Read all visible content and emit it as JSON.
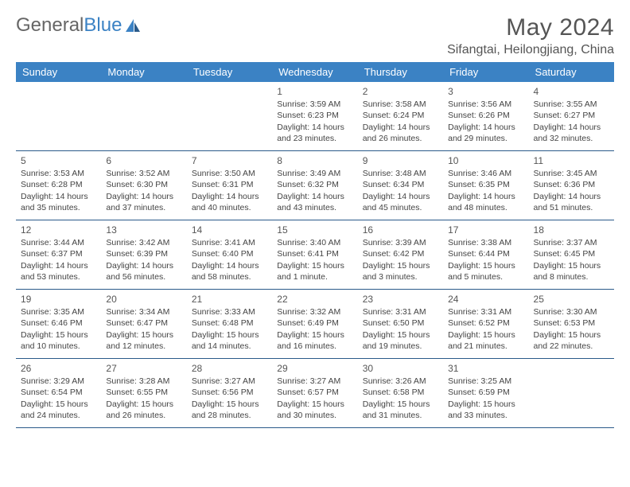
{
  "logo": {
    "part1": "General",
    "part2": "Blue"
  },
  "title": "May 2024",
  "location": "Sifangtai, Heilongjiang, China",
  "colors": {
    "header_bg": "#3b82c4",
    "header_text": "#ffffff",
    "border": "#2a5a8a",
    "text": "#444444",
    "logo_accent": "#3b82c4"
  },
  "daysOfWeek": [
    "Sunday",
    "Monday",
    "Tuesday",
    "Wednesday",
    "Thursday",
    "Friday",
    "Saturday"
  ],
  "weeks": [
    [
      null,
      null,
      null,
      {
        "n": "1",
        "sr": "3:59 AM",
        "ss": "6:23 PM",
        "d1": "14 hours",
        "d2": "and 23 minutes."
      },
      {
        "n": "2",
        "sr": "3:58 AM",
        "ss": "6:24 PM",
        "d1": "14 hours",
        "d2": "and 26 minutes."
      },
      {
        "n": "3",
        "sr": "3:56 AM",
        "ss": "6:26 PM",
        "d1": "14 hours",
        "d2": "and 29 minutes."
      },
      {
        "n": "4",
        "sr": "3:55 AM",
        "ss": "6:27 PM",
        "d1": "14 hours",
        "d2": "and 32 minutes."
      }
    ],
    [
      {
        "n": "5",
        "sr": "3:53 AM",
        "ss": "6:28 PM",
        "d1": "14 hours",
        "d2": "and 35 minutes."
      },
      {
        "n": "6",
        "sr": "3:52 AM",
        "ss": "6:30 PM",
        "d1": "14 hours",
        "d2": "and 37 minutes."
      },
      {
        "n": "7",
        "sr": "3:50 AM",
        "ss": "6:31 PM",
        "d1": "14 hours",
        "d2": "and 40 minutes."
      },
      {
        "n": "8",
        "sr": "3:49 AM",
        "ss": "6:32 PM",
        "d1": "14 hours",
        "d2": "and 43 minutes."
      },
      {
        "n": "9",
        "sr": "3:48 AM",
        "ss": "6:34 PM",
        "d1": "14 hours",
        "d2": "and 45 minutes."
      },
      {
        "n": "10",
        "sr": "3:46 AM",
        "ss": "6:35 PM",
        "d1": "14 hours",
        "d2": "and 48 minutes."
      },
      {
        "n": "11",
        "sr": "3:45 AM",
        "ss": "6:36 PM",
        "d1": "14 hours",
        "d2": "and 51 minutes."
      }
    ],
    [
      {
        "n": "12",
        "sr": "3:44 AM",
        "ss": "6:37 PM",
        "d1": "14 hours",
        "d2": "and 53 minutes."
      },
      {
        "n": "13",
        "sr": "3:42 AM",
        "ss": "6:39 PM",
        "d1": "14 hours",
        "d2": "and 56 minutes."
      },
      {
        "n": "14",
        "sr": "3:41 AM",
        "ss": "6:40 PM",
        "d1": "14 hours",
        "d2": "and 58 minutes."
      },
      {
        "n": "15",
        "sr": "3:40 AM",
        "ss": "6:41 PM",
        "d1": "15 hours",
        "d2": "and 1 minute."
      },
      {
        "n": "16",
        "sr": "3:39 AM",
        "ss": "6:42 PM",
        "d1": "15 hours",
        "d2": "and 3 minutes."
      },
      {
        "n": "17",
        "sr": "3:38 AM",
        "ss": "6:44 PM",
        "d1": "15 hours",
        "d2": "and 5 minutes."
      },
      {
        "n": "18",
        "sr": "3:37 AM",
        "ss": "6:45 PM",
        "d1": "15 hours",
        "d2": "and 8 minutes."
      }
    ],
    [
      {
        "n": "19",
        "sr": "3:35 AM",
        "ss": "6:46 PM",
        "d1": "15 hours",
        "d2": "and 10 minutes."
      },
      {
        "n": "20",
        "sr": "3:34 AM",
        "ss": "6:47 PM",
        "d1": "15 hours",
        "d2": "and 12 minutes."
      },
      {
        "n": "21",
        "sr": "3:33 AM",
        "ss": "6:48 PM",
        "d1": "15 hours",
        "d2": "and 14 minutes."
      },
      {
        "n": "22",
        "sr": "3:32 AM",
        "ss": "6:49 PM",
        "d1": "15 hours",
        "d2": "and 16 minutes."
      },
      {
        "n": "23",
        "sr": "3:31 AM",
        "ss": "6:50 PM",
        "d1": "15 hours",
        "d2": "and 19 minutes."
      },
      {
        "n": "24",
        "sr": "3:31 AM",
        "ss": "6:52 PM",
        "d1": "15 hours",
        "d2": "and 21 minutes."
      },
      {
        "n": "25",
        "sr": "3:30 AM",
        "ss": "6:53 PM",
        "d1": "15 hours",
        "d2": "and 22 minutes."
      }
    ],
    [
      {
        "n": "26",
        "sr": "3:29 AM",
        "ss": "6:54 PM",
        "d1": "15 hours",
        "d2": "and 24 minutes."
      },
      {
        "n": "27",
        "sr": "3:28 AM",
        "ss": "6:55 PM",
        "d1": "15 hours",
        "d2": "and 26 minutes."
      },
      {
        "n": "28",
        "sr": "3:27 AM",
        "ss": "6:56 PM",
        "d1": "15 hours",
        "d2": "and 28 minutes."
      },
      {
        "n": "29",
        "sr": "3:27 AM",
        "ss": "6:57 PM",
        "d1": "15 hours",
        "d2": "and 30 minutes."
      },
      {
        "n": "30",
        "sr": "3:26 AM",
        "ss": "6:58 PM",
        "d1": "15 hours",
        "d2": "and 31 minutes."
      },
      {
        "n": "31",
        "sr": "3:25 AM",
        "ss": "6:59 PM",
        "d1": "15 hours",
        "d2": "and 33 minutes."
      },
      null
    ]
  ],
  "labels": {
    "sunrise": "Sunrise: ",
    "sunset": "Sunset: ",
    "daylight": "Daylight: "
  }
}
